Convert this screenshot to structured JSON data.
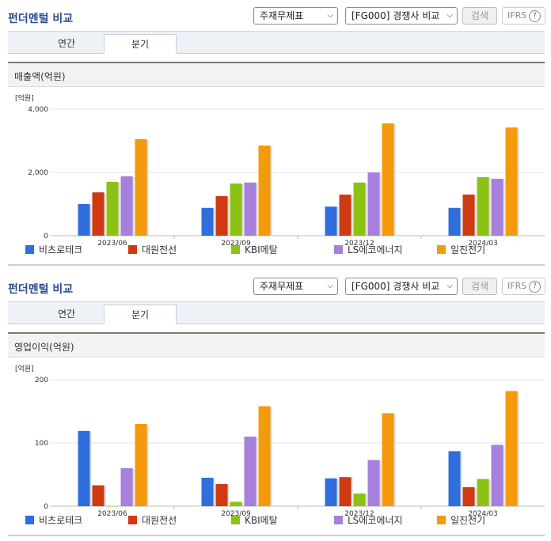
{
  "sections": [
    {
      "title": "펀더멘털 비교",
      "statement_select": "주재무제표",
      "peer_select": "[FG000] 경쟁사 비교",
      "search_label": "검색",
      "ifrs_label": "IFRS",
      "help_label": "?",
      "tabs": [
        {
          "label": "연간"
        },
        {
          "label": "분기"
        }
      ],
      "active_tab": "분기",
      "chart_heading": "매출액(억원)"
    },
    {
      "title": "펀더멘털 비교",
      "statement_select": "주재무제표",
      "peer_select": "[FG000] 경쟁사 비교",
      "search_label": "검색",
      "ifrs_label": "IFRS",
      "help_label": "?",
      "tabs": [
        {
          "label": "연간"
        },
        {
          "label": "분기"
        }
      ],
      "active_tab": "분기",
      "chart_heading": "영업이익(억원)"
    }
  ],
  "chart_data": [
    {
      "type": "bar",
      "title": "매출액(억원)",
      "unit_label": "[억원]",
      "categories": [
        "2023/06",
        "2023/09",
        "2023/12",
        "2024/03"
      ],
      "ylim": [
        0,
        4000
      ],
      "yticks": [
        0,
        2000,
        4000
      ],
      "ytick_labels": [
        "0",
        "2,000",
        "4,000"
      ],
      "grid": true,
      "legend_position": "bottom",
      "series": [
        {
          "name": "비츠로테크",
          "color": "#2f6fdc",
          "values": [
            1000,
            880,
            920,
            880
          ]
        },
        {
          "name": "대원전선",
          "color": "#d03a12",
          "values": [
            1370,
            1250,
            1300,
            1300
          ]
        },
        {
          "name": "KBI메탈",
          "color": "#8cc214",
          "values": [
            1700,
            1650,
            1680,
            1850
          ]
        },
        {
          "name": "LS에코에너지",
          "color": "#a77fdc",
          "values": [
            1880,
            1680,
            2000,
            1800
          ]
        },
        {
          "name": "일진전기",
          "color": "#f59a0a",
          "values": [
            3050,
            2850,
            3550,
            3420
          ]
        }
      ]
    },
    {
      "type": "bar",
      "title": "영업이익(억원)",
      "unit_label": "[억원]",
      "categories": [
        "2023/06",
        "2023/09",
        "2023/12",
        "2024/03"
      ],
      "ylim": [
        0,
        200
      ],
      "yticks": [
        0,
        100,
        200
      ],
      "ytick_labels": [
        "0",
        "100",
        "200"
      ],
      "grid": true,
      "legend_position": "bottom",
      "series": [
        {
          "name": "비츠로테크",
          "color": "#2f6fdc",
          "values": [
            119,
            45,
            44,
            87
          ]
        },
        {
          "name": "대원전선",
          "color": "#d03a12",
          "values": [
            33,
            35,
            46,
            30
          ]
        },
        {
          "name": "KBI메탈",
          "color": "#8cc214",
          "values": [
            0,
            7,
            20,
            43
          ]
        },
        {
          "name": "LS에코에너지",
          "color": "#a77fdc",
          "values": [
            60,
            110,
            73,
            97
          ]
        },
        {
          "name": "일진전기",
          "color": "#f59a0a",
          "values": [
            130,
            158,
            147,
            182
          ]
        }
      ]
    }
  ]
}
